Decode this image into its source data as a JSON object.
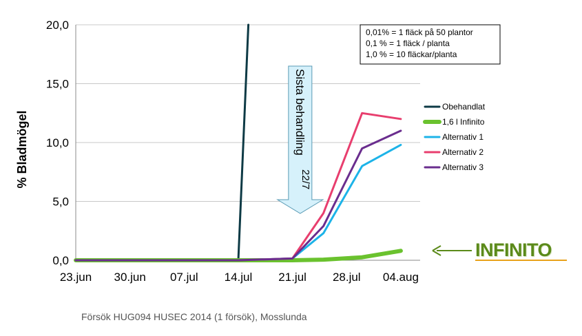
{
  "chart_data": {
    "type": "line",
    "title": "",
    "xlabel": "",
    "ylabel": "% Bladmögel",
    "ylim": [
      0,
      20
    ],
    "yticks": [
      "0,0",
      "5,0",
      "10,0",
      "15,0",
      "20,0"
    ],
    "ytick_values": [
      0,
      5,
      10,
      15,
      20
    ],
    "xticks": [
      "23.jun",
      "30.jun",
      "07.jul",
      "14.jul",
      "21.jul",
      "28.jul",
      "04.aug"
    ],
    "xtick_days": [
      0,
      7,
      14,
      21,
      28,
      35,
      42
    ],
    "grid": "horizontal",
    "legend_position": "right",
    "series": [
      {
        "name": "Obehandlat",
        "color": "#0d3a45",
        "width": 3,
        "x": [
          0,
          7,
          14,
          21,
          22.3
        ],
        "y": [
          0,
          0,
          0,
          0,
          20
        ]
      },
      {
        "name": "1,6 l Infinito",
        "color": "#6ac22e",
        "width": 6,
        "x": [
          0,
          7,
          14,
          21,
          28,
          32,
          37,
          42
        ],
        "y": [
          0,
          0,
          0,
          0,
          0,
          0.05,
          0.25,
          0.8
        ]
      },
      {
        "name": "Alternativ 1",
        "color": "#1cb3e8",
        "width": 3,
        "x": [
          0,
          7,
          14,
          21,
          28,
          32,
          37,
          42
        ],
        "y": [
          0,
          0,
          0,
          0,
          0.15,
          2.3,
          8.0,
          9.8
        ]
      },
      {
        "name": "Alternativ 2",
        "color": "#e83e6e",
        "width": 3,
        "x": [
          0,
          7,
          14,
          21,
          28,
          32,
          37,
          42
        ],
        "y": [
          0,
          0,
          0,
          0,
          0.15,
          4.0,
          12.5,
          12.0
        ]
      },
      {
        "name": "Alternativ 3",
        "color": "#6a2d8e",
        "width": 3,
        "x": [
          0,
          7,
          14,
          21,
          28,
          32,
          37,
          42
        ],
        "y": [
          0,
          0,
          0,
          0,
          0.15,
          2.9,
          9.5,
          11.0
        ]
      }
    ],
    "note_lines": [
      "0,01%  =  1  fläck på 50 plantor",
      "0,1  %  =  1  fläck / planta",
      "1,0  %  = 10 fläckar/planta"
    ],
    "arrow": {
      "label": "Sista behandling",
      "sub": "22/7",
      "x_day": 29
    }
  },
  "logo_text": "INFINITO",
  "footer": "Försök HUG094 HUSEC 2014 (1 försök), Mosslunda"
}
